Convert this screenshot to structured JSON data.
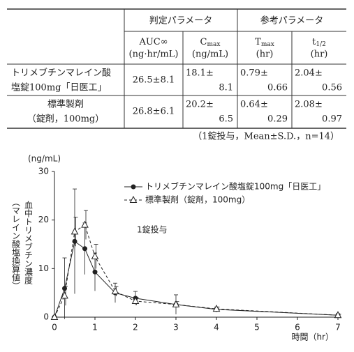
{
  "table": {
    "group_headers": [
      "判定パラメータ",
      "参考パラメータ"
    ],
    "columns": [
      {
        "main": "AUC∞",
        "unit": "(ng·hr/mL)"
      },
      {
        "main": "C",
        "sub": "max",
        "unit": "(ng/mL)"
      },
      {
        "main": "T",
        "sub": "max",
        "unit": "(hr)"
      },
      {
        "main": "t",
        "sub": "1/2",
        "unit": "(hr)"
      }
    ],
    "rows": [
      {
        "label": [
          "トリメブチンマレイン酸",
          "塩錠100mg「日医工」"
        ],
        "cells": [
          [
            "26.5±8.1"
          ],
          [
            "18.1±",
            "8.1"
          ],
          [
            "0.79±",
            "0.66"
          ],
          [
            "2.04±",
            "0.56"
          ]
        ]
      },
      {
        "label": [
          "標準製剤",
          "（錠剤，100mg）"
        ],
        "cells": [
          [
            "26.8±6.1"
          ],
          [
            "20.2±",
            "6.5"
          ],
          [
            "0.64±",
            "0.29"
          ],
          [
            "2.08±",
            "0.97"
          ]
        ]
      }
    ],
    "note": "（1錠投与，Mean±S.D.，n=14）"
  },
  "chart_data": {
    "type": "line",
    "y_unit": "(ng/mL)",
    "y_label": [
      "血中トリメブチン濃度",
      "（マレイン酸塩換算値）"
    ],
    "x_label": "時間（hr）",
    "annotation": "1錠投与",
    "x": [
      0,
      0.25,
      0.5,
      0.75,
      1,
      1.5,
      2,
      3,
      4,
      7
    ],
    "series": [
      {
        "name": "トリメブチンマレイン酸塩錠100mg「日医工」",
        "color": "#222",
        "marker": "filled-circle",
        "dashed": false,
        "values": [
          0,
          5.9,
          15.6,
          14.1,
          9.3,
          5.0,
          3.9,
          2.6,
          1.6,
          0.4
        ],
        "errors": [
          0,
          6.3,
          10.8,
          5.3,
          3.9,
          2.0,
          1.4,
          2.0,
          0.5,
          0.3
        ]
      },
      {
        "name": "標準製剤（錠剤，100mg）",
        "color": "#222",
        "marker": "open-triangle",
        "dashed": true,
        "values": [
          0,
          4.4,
          17.6,
          19.0,
          12.5,
          5.3,
          3.3,
          2.6,
          1.7,
          0.4
        ],
        "errors": [
          0,
          2.0,
          3.0,
          3.0,
          2.5,
          1.0,
          0.8,
          0.6,
          0.4,
          0.2
        ]
      }
    ],
    "xlim": [
      0,
      7
    ],
    "ylim": [
      0,
      30
    ],
    "xticks": [
      0,
      1,
      2,
      3,
      4,
      5,
      6,
      7
    ],
    "yticks": [
      0,
      10,
      20,
      30
    ]
  }
}
